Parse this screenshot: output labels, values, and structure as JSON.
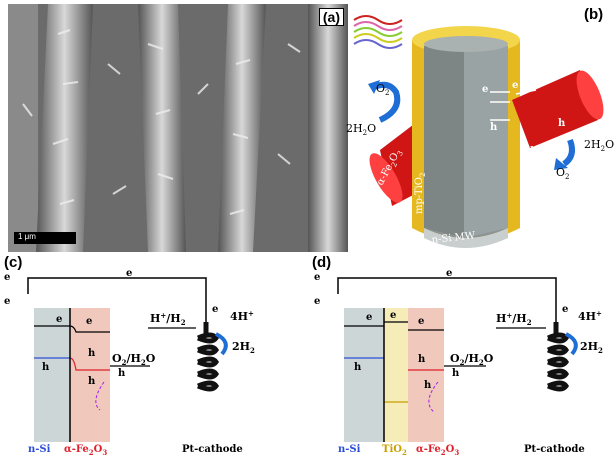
{
  "panels": {
    "a": "(a)",
    "b": "(b)",
    "c": "(c)",
    "d": "(d)"
  },
  "sem": {
    "scale_bar": "1 μm"
  },
  "b": {
    "o2": "O",
    "o2_sub": "2",
    "h2o_left": "2H",
    "h2o_left_sub": "2",
    "h2o_left_end": "O",
    "h2o_right": "2H",
    "h2o_right_sub": "2",
    "h2o_right_end": "O",
    "o2_right": "O",
    "o2_right_sub": "2",
    "fe2o3": "α-Fe",
    "fe2o3_sub1": "2",
    "fe2o3_mid": "O",
    "fe2o3_sub2": "3",
    "tio2": "mp-TiO",
    "tio2_sub": "2",
    "nsi": "n-Si MW",
    "e1": "e",
    "e2": "e",
    "e3": "e",
    "h1": "h",
    "h2": "h",
    "h3": "h"
  },
  "c": {
    "e_top": "e",
    "e_mid": "e",
    "e_left": "e",
    "e_right": "e",
    "e_in1": "e",
    "e_in2": "e",
    "h_in1": "h",
    "h_in2": "h",
    "h_out": "h",
    "h_bottom": "h",
    "redox_h": "H",
    "redox_h2": "/H",
    "redox_h2_sub": "2",
    "redox_o2": "O",
    "redox_o2_sub": "2",
    "redox_o2_end": "/H",
    "redox_o2_end_sub": "2",
    "redox_o2_tail": "O",
    "four_h": "4H",
    "two_h2": "2H",
    "two_h2_sub": "2",
    "nsi": "n-Si",
    "fe2o3": "α-Fe",
    "fe2o3_sub1": "2",
    "fe2o3_mid": "O",
    "fe2o3_sub2": "3",
    "cathode": "Pt-cathode"
  },
  "d": {
    "e_top": "e",
    "e_mid": "e",
    "e_left": "e",
    "e_right": "e",
    "e_in1": "e",
    "e_in2": "e",
    "e_in3": "e",
    "h_in1": "h",
    "h_in2": "h",
    "h_in3": "h",
    "h_out": "h",
    "redox_h": "H",
    "redox_h2": "/H",
    "redox_h2_sub": "2",
    "redox_o2": "O",
    "redox_o2_sub": "2",
    "redox_o2_end": "/H",
    "redox_o2_end_sub": "2",
    "redox_o2_tail": "O",
    "four_h": "4H",
    "two_h2": "2H",
    "two_h2_sub": "2",
    "nsi": "n-Si",
    "tio2": "TiO",
    "tio2_sub": "2",
    "fe2o3": "α-Fe",
    "fe2o3_sub1": "2",
    "fe2o3_mid": "O",
    "fe2o3_sub2": "3",
    "cathode": "Pt-cathode"
  },
  "colors": {
    "nsi": "#2b4fd6",
    "fe2o3": "#e0202a",
    "tio2": "#c8a000",
    "arrow": "#1f6ed6"
  }
}
